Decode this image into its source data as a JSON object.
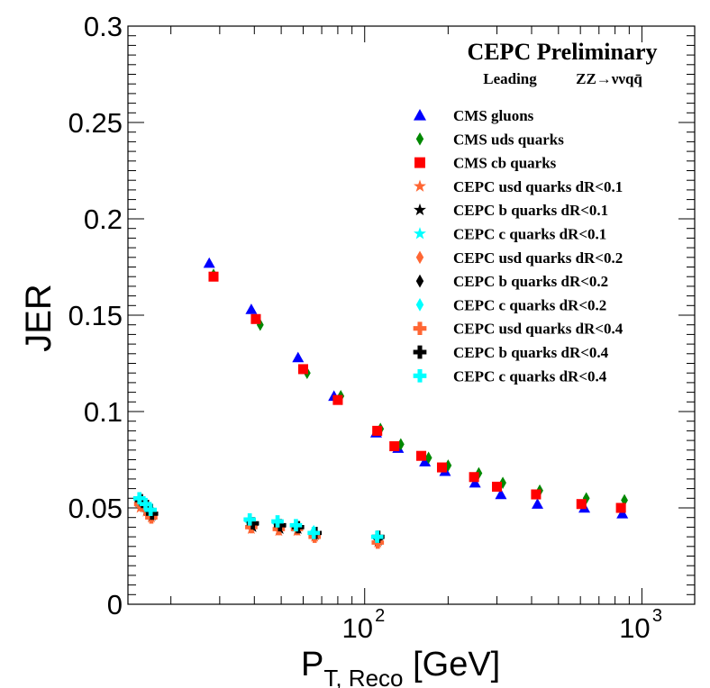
{
  "chart_data": {
    "type": "scatter",
    "title": "CEPC Preliminary",
    "subtitle_left": "Leading",
    "subtitle_right": "ZZ→ννqq̄",
    "xlabel": "P",
    "xlabel_sub": "T, Reco",
    "xlabel_unit": " [GeV]",
    "ylabel": "JER",
    "xscale": "log",
    "xlim": [
      14,
      1550
    ],
    "ylim": [
      0,
      0.3
    ],
    "yticks": [
      0,
      0.05,
      0.1,
      0.15,
      0.2,
      0.25,
      0.3
    ],
    "ytick_labels": [
      "0",
      "0.05",
      "0.1",
      "0.15",
      "0.2",
      "0.25",
      "0.3"
    ],
    "xtick_labels": [
      {
        "base": "10",
        "exp": "2",
        "value": 100
      },
      {
        "base": "10",
        "exp": "3",
        "value": 1000
      }
    ],
    "legend_position": "top-right",
    "series": [
      {
        "name": "CMS gluons",
        "marker": "triangle",
        "color": "#0000ff",
        "x": [
          27.5,
          39,
          57.5,
          77.5,
          110,
          132,
          165,
          195,
          250,
          310,
          420,
          620,
          850
        ],
        "y": [
          0.177,
          0.153,
          0.128,
          0.108,
          0.089,
          0.081,
          0.074,
          0.069,
          0.063,
          0.057,
          0.052,
          0.05,
          0.047
        ]
      },
      {
        "name": "CMS uds quarks",
        "marker": "diamond",
        "color": "#008800",
        "x": [
          28.5,
          42,
          62,
          82,
          114,
          135,
          170,
          200,
          258,
          315,
          428,
          630,
          865
        ],
        "y": [
          0.171,
          0.145,
          0.12,
          0.108,
          0.091,
          0.083,
          0.076,
          0.072,
          0.068,
          0.063,
          0.059,
          0.055,
          0.054
        ]
      },
      {
        "name": "CMS cb quarks",
        "marker": "square",
        "color": "#ff0000",
        "x": [
          28.5,
          40.5,
          60,
          80,
          111,
          128,
          160,
          190,
          248,
          300,
          415,
          605,
          840
        ],
        "y": [
          0.17,
          0.148,
          0.122,
          0.106,
          0.09,
          0.082,
          0.077,
          0.071,
          0.066,
          0.061,
          0.057,
          0.052,
          0.05
        ]
      },
      {
        "name": "CEPC usd quarks dR<0.1",
        "marker": "star",
        "color": "#ff6633",
        "x": [
          15.5,
          16.3,
          17,
          39,
          49,
          57,
          66,
          111.5
        ],
        "y": [
          0.05,
          0.048,
          0.045,
          0.039,
          0.038,
          0.038,
          0.035,
          0.032
        ]
      },
      {
        "name": "CEPC b quarks dR<0.1",
        "marker": "star",
        "color": "#000000",
        "x": [
          15.6,
          16.4,
          17.1,
          39.5,
          49.5,
          57.5,
          66.5,
          112
        ],
        "y": [
          0.052,
          0.049,
          0.046,
          0.04,
          0.039,
          0.039,
          0.036,
          0.033
        ]
      },
      {
        "name": "CEPC c quarks dR<0.1",
        "marker": "star",
        "color": "#00ffff",
        "x": [
          15.4,
          16.2,
          16.9,
          38.5,
          48.5,
          56.5,
          65.5,
          111
        ],
        "y": [
          0.053,
          0.05,
          0.047,
          0.042,
          0.041,
          0.04,
          0.037,
          0.034
        ]
      },
      {
        "name": "CEPC usd quarks dR<0.2",
        "marker": "diamond",
        "color": "#ff6633",
        "x": [
          15.5,
          16.3,
          17,
          39,
          49,
          57,
          66,
          111.5
        ],
        "y": [
          0.051,
          0.048,
          0.045,
          0.04,
          0.039,
          0.039,
          0.035,
          0.032
        ]
      },
      {
        "name": "CEPC b quarks dR<0.2",
        "marker": "diamond",
        "color": "#000000",
        "x": [
          15.6,
          16.4,
          17.1,
          39.5,
          49.5,
          57.5,
          66.5,
          112
        ],
        "y": [
          0.053,
          0.05,
          0.047,
          0.041,
          0.04,
          0.04,
          0.037,
          0.034
        ]
      },
      {
        "name": "CEPC c quarks dR<0.2",
        "marker": "diamond",
        "color": "#00ffff",
        "x": [
          15.4,
          16.2,
          16.9,
          38.5,
          48.5,
          56.5,
          65.5,
          111
        ],
        "y": [
          0.054,
          0.051,
          0.048,
          0.043,
          0.042,
          0.041,
          0.038,
          0.035
        ]
      },
      {
        "name": "CEPC usd quarks dR<0.4",
        "marker": "cross",
        "color": "#ff6633",
        "x": [
          15.5,
          16.3,
          17,
          39,
          49,
          57,
          66,
          111.5
        ],
        "y": [
          0.052,
          0.049,
          0.045,
          0.04,
          0.039,
          0.039,
          0.035,
          0.032
        ]
      },
      {
        "name": "CEPC b quarks dR<0.4",
        "marker": "cross",
        "color": "#000000",
        "x": [
          15.6,
          16.4,
          17.1,
          39.5,
          49.5,
          57.5,
          66.5,
          112
        ],
        "y": [
          0.054,
          0.051,
          0.047,
          0.042,
          0.041,
          0.04,
          0.037,
          0.035
        ]
      },
      {
        "name": "CEPC c quarks dR<0.4",
        "marker": "cross",
        "color": "#00ffff",
        "x": [
          15.4,
          16.2,
          16.9,
          38.5,
          48.5,
          56.5,
          65.5,
          111
        ],
        "y": [
          0.055,
          0.052,
          0.049,
          0.044,
          0.043,
          0.041,
          0.037,
          0.035
        ]
      }
    ]
  }
}
